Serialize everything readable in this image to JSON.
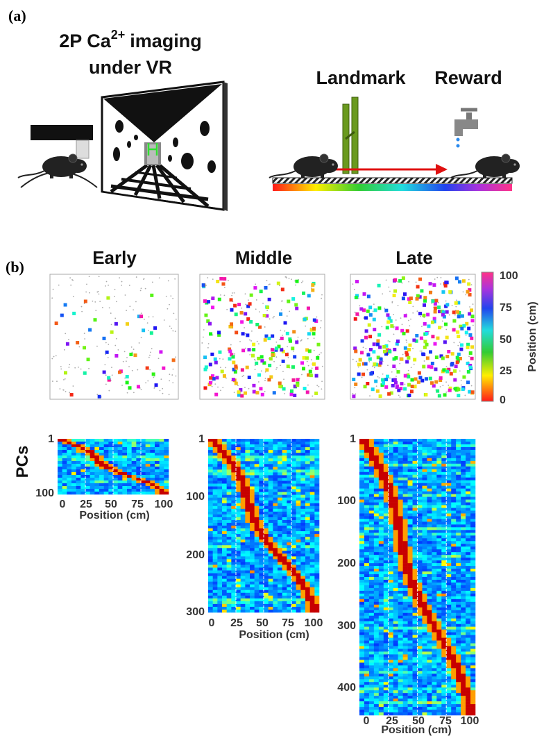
{
  "panel_a": {
    "label": "(a)",
    "vr_title": {
      "line1_start": "2P Ca",
      "superscript": "2+",
      "line1_end": "imaging",
      "line2": "under VR"
    },
    "landmark": "Landmark",
    "reward": "Reward"
  },
  "panel_b": {
    "label": "(b)",
    "stages": [
      "Early",
      "Middle",
      "Late"
    ],
    "colorbar": {
      "ticks": [
        100,
        75,
        50,
        25,
        0
      ],
      "label": "Position (cm)"
    },
    "y_label": "PCs",
    "heatmaps": [
      {
        "yticks": [
          1,
          100
        ],
        "xticks": [
          0,
          25,
          50,
          75,
          100
        ],
        "x_label": "Position (cm)"
      },
      {
        "yticks": [
          1,
          100,
          200,
          300
        ],
        "xticks": [
          0,
          25,
          50,
          75,
          100
        ],
        "x_label": "Position (cm)"
      },
      {
        "yticks": [
          1,
          100,
          200,
          300,
          400
        ],
        "xticks": [
          0,
          25,
          50,
          75,
          100
        ],
        "x_label": "Position (cm)"
      }
    ]
  }
}
